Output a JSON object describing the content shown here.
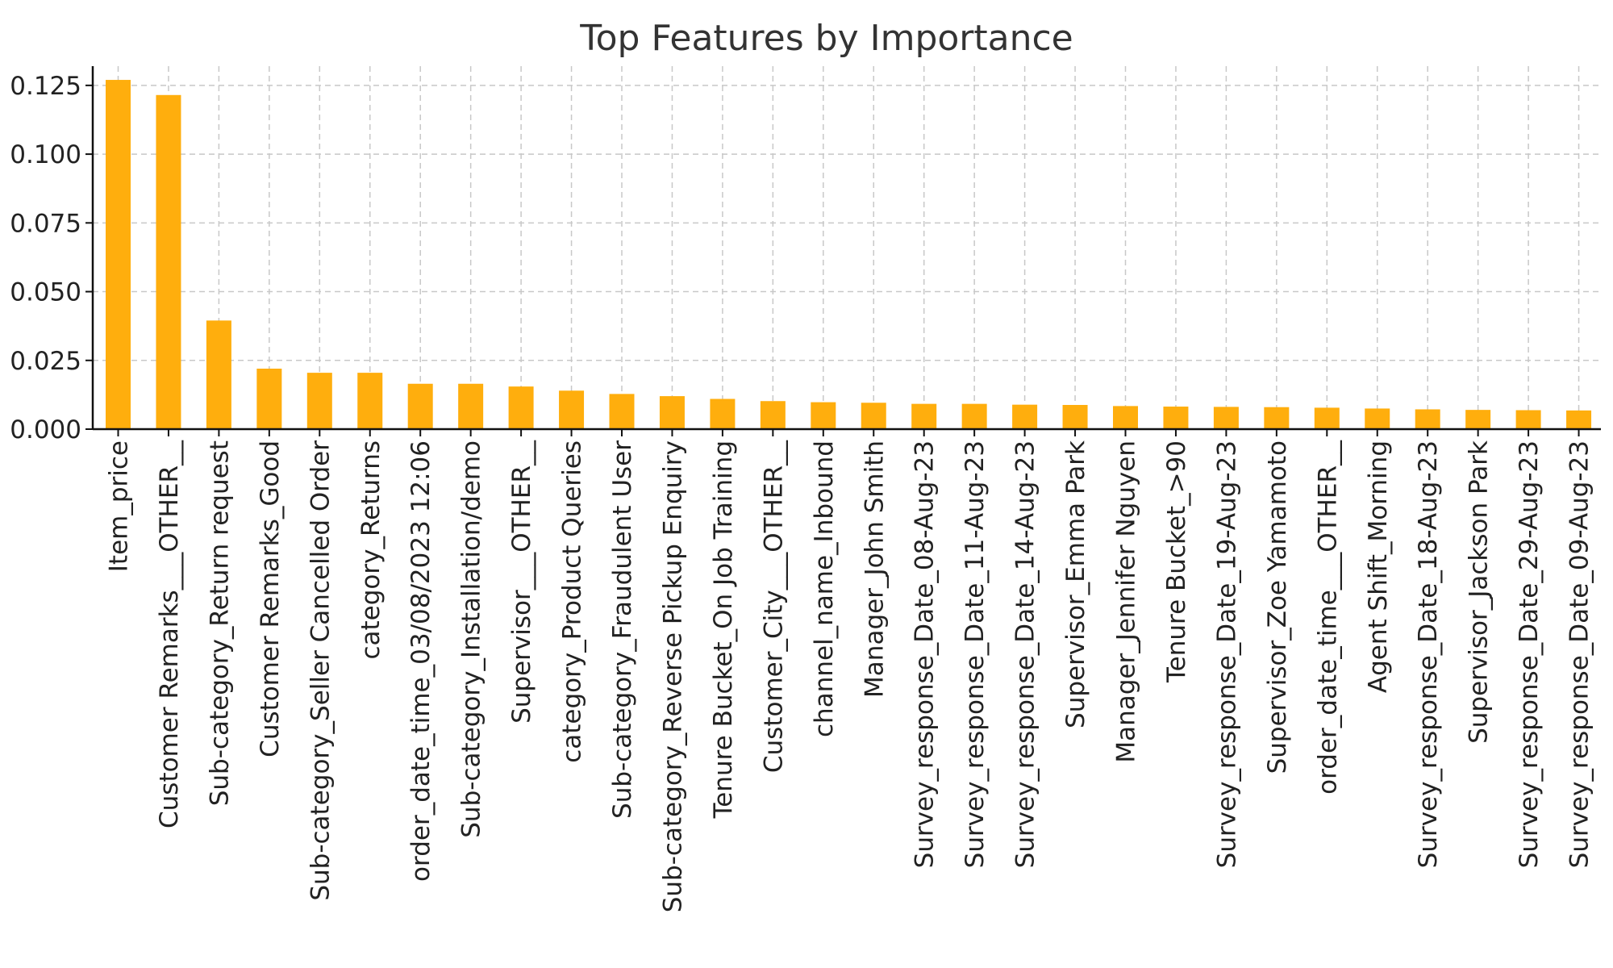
{
  "chart_data": {
    "type": "bar",
    "title": "Top Features by Importance",
    "xlabel": "",
    "ylabel": "",
    "ylim": [
      0,
      0.132
    ],
    "yticks": [
      "0.000",
      "0.025",
      "0.050",
      "0.075",
      "0.100",
      "0.125"
    ],
    "ytick_values": [
      0,
      0.025,
      0.05,
      0.075,
      0.1,
      0.125
    ],
    "grid": true,
    "bar_color": "#FFAE0D",
    "categories": [
      "Item_price",
      "Customer Remarks___OTHER__",
      "Sub-category_Return request",
      "Customer Remarks_Good",
      "Sub-category_Seller Cancelled Order",
      "category_Returns",
      "order_date_time_03/08/2023 12:06",
      "Sub-category_Installation/demo",
      "Supervisor___OTHER__",
      "category_Product Queries",
      "Sub-category_Fraudulent User",
      "Sub-category_Reverse Pickup Enquiry",
      "Tenure Bucket_On Job Training",
      "Customer_City___OTHER__",
      "channel_name_Inbound",
      "Manager_John Smith",
      "Survey_response_Date_08-Aug-23",
      "Survey_response_Date_11-Aug-23",
      "Survey_response_Date_14-Aug-23",
      "Supervisor_Emma Park",
      "Manager_Jennifer Nguyen",
      "Tenure Bucket_>90",
      "Survey_response_Date_19-Aug-23",
      "Supervisor_Zoe Yamamoto",
      "order_date_time___OTHER__",
      "Agent Shift_Morning",
      "Survey_response_Date_18-Aug-23",
      "Supervisor_Jackson Park",
      "Survey_response_Date_29-Aug-23",
      "Survey_response_Date_09-Aug-23"
    ],
    "values": [
      0.127,
      0.1215,
      0.0395,
      0.022,
      0.0205,
      0.0205,
      0.0165,
      0.0165,
      0.0155,
      0.014,
      0.0128,
      0.012,
      0.011,
      0.0102,
      0.0098,
      0.0096,
      0.0092,
      0.0092,
      0.0089,
      0.0088,
      0.0084,
      0.0082,
      0.0081,
      0.008,
      0.0078,
      0.0075,
      0.0072,
      0.007,
      0.0069,
      0.0068
    ]
  }
}
